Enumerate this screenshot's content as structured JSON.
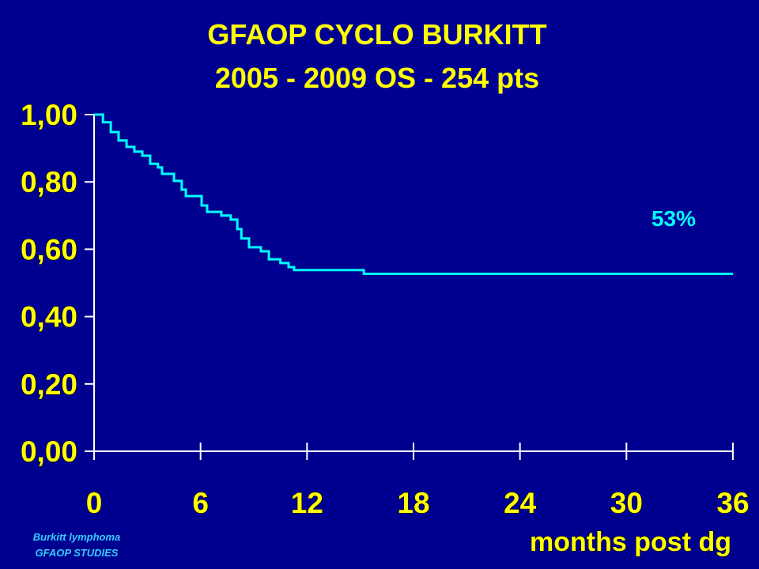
{
  "chart_data": {
    "type": "step",
    "title": "GFAOP CYCLO BURKITT",
    "subtitle": "2005 - 2009  OS -  254 pts",
    "xlabel": "months post dg",
    "annotation": "53%",
    "footer": [
      "Burkitt lymphoma",
      "GFAOP STUDIES"
    ],
    "color": "#00ffff",
    "x": [
      0,
      0.5,
      0.94,
      1.38,
      1.83,
      2.27,
      2.72,
      3.16,
      3.6,
      3.83,
      4.5,
      4.94,
      5.17,
      6.06,
      6.37,
      7.17,
      7.7,
      8.07,
      8.3,
      8.73,
      9.4,
      9.85,
      10.5,
      10.96,
      11.27,
      15.2,
      36
    ],
    "values": [
      1.0,
      0.977,
      0.948,
      0.923,
      0.904,
      0.89,
      0.878,
      0.854,
      0.843,
      0.824,
      0.803,
      0.777,
      0.758,
      0.73,
      0.711,
      0.7,
      0.688,
      0.66,
      0.632,
      0.606,
      0.594,
      0.57,
      0.559,
      0.547,
      0.538,
      0.527,
      0.527
    ],
    "xlim": [
      0,
      36
    ],
    "xticks": [
      0,
      6,
      12,
      18,
      24,
      30,
      36
    ],
    "ylim": [
      0,
      1
    ],
    "yticks": [
      {
        "value": 0,
        "label": "0,00"
      },
      {
        "value": 0.2,
        "label": "0,20"
      },
      {
        "value": 0.4,
        "label": "0,40"
      },
      {
        "value": 0.6,
        "label": "0,60"
      },
      {
        "value": 0.8,
        "label": "0,80"
      },
      {
        "value": 1,
        "label": "1,00"
      }
    ]
  }
}
